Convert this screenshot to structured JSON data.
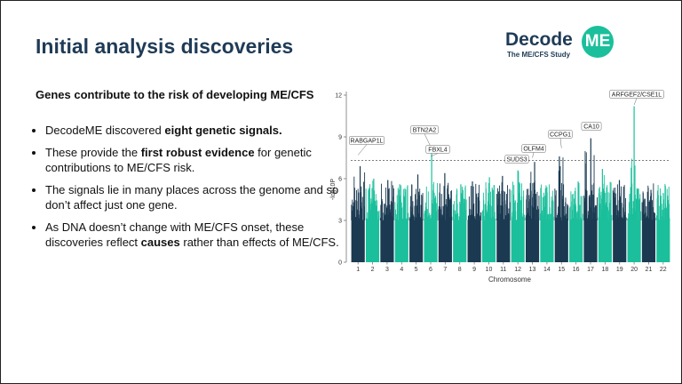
{
  "slide": {
    "title": "Initial analysis discoveries",
    "subtitle": "Genes contribute to the risk of developing ME/CFS"
  },
  "logo": {
    "word": "Decode",
    "badge": "ME",
    "tagline": "The ME/CFS Study"
  },
  "bullets": [
    {
      "pre": "DecodeME discovered ",
      "bold": "eight genetic signals.",
      "post": ""
    },
    {
      "pre": "These provide the ",
      "bold": "first robust evidence",
      "post": " for genetic contributions to ME/CFS risk."
    },
    {
      "pre": "The signals lie in many places across the genome and so don’t affect just one gene.",
      "bold": "",
      "post": ""
    },
    {
      "pre": "As DNA doesn’t change with ME/CFS onset, these discoveries reflect ",
      "bold": "causes",
      "post": " rather than effects of ME/CFS."
    }
  ],
  "colors": {
    "dark_series": "#1b3a52",
    "teal_series": "#1bbf9b",
    "title": "#1f3b57",
    "threshold": "#555555"
  },
  "chart_data": {
    "type": "scatter",
    "subtype": "manhattan",
    "xlabel": "Chromosome",
    "ylabel": "-log10P",
    "ylim": [
      0,
      12
    ],
    "y_ticks": [
      0,
      3,
      6,
      9,
      12
    ],
    "categories": [
      "1",
      "2",
      "3",
      "4",
      "5",
      "6",
      "7",
      "8",
      "9",
      "10",
      "11",
      "12",
      "13",
      "14",
      "15",
      "16",
      "17",
      "18",
      "19",
      "20",
      "21",
      "22"
    ],
    "bulk_max": [
      6.9,
      6.0,
      5.9,
      5.6,
      6.3,
      8.3,
      6.4,
      5.6,
      5.8,
      6.1,
      6.2,
      6.6,
      7.2,
      5.4,
      7.6,
      5.8,
      8.9,
      6.7,
      5.9,
      11.2,
      5.2,
      5.5
    ],
    "significance_threshold": 7.3,
    "grid": false,
    "annotations": [
      {
        "label": "RABGAP1L",
        "chromosome": "1",
        "value": 7.7
      },
      {
        "label": "BTN2A2",
        "chromosome": "6",
        "value": 8.3
      },
      {
        "label": "FBXL4",
        "chromosome": "6",
        "value": 7.6
      },
      {
        "label": "SUDS3",
        "chromosome": "12",
        "value": 7.6
      },
      {
        "label": "OLFM4",
        "chromosome": "13",
        "value": 7.5
      },
      {
        "label": "CCPG1",
        "chromosome": "15",
        "value": 8.2
      },
      {
        "label": "CA10",
        "chromosome": "17",
        "value": 9.6
      },
      {
        "label": "ARFGEF2/CSE1L",
        "chromosome": "20",
        "value": 11.3
      }
    ]
  }
}
